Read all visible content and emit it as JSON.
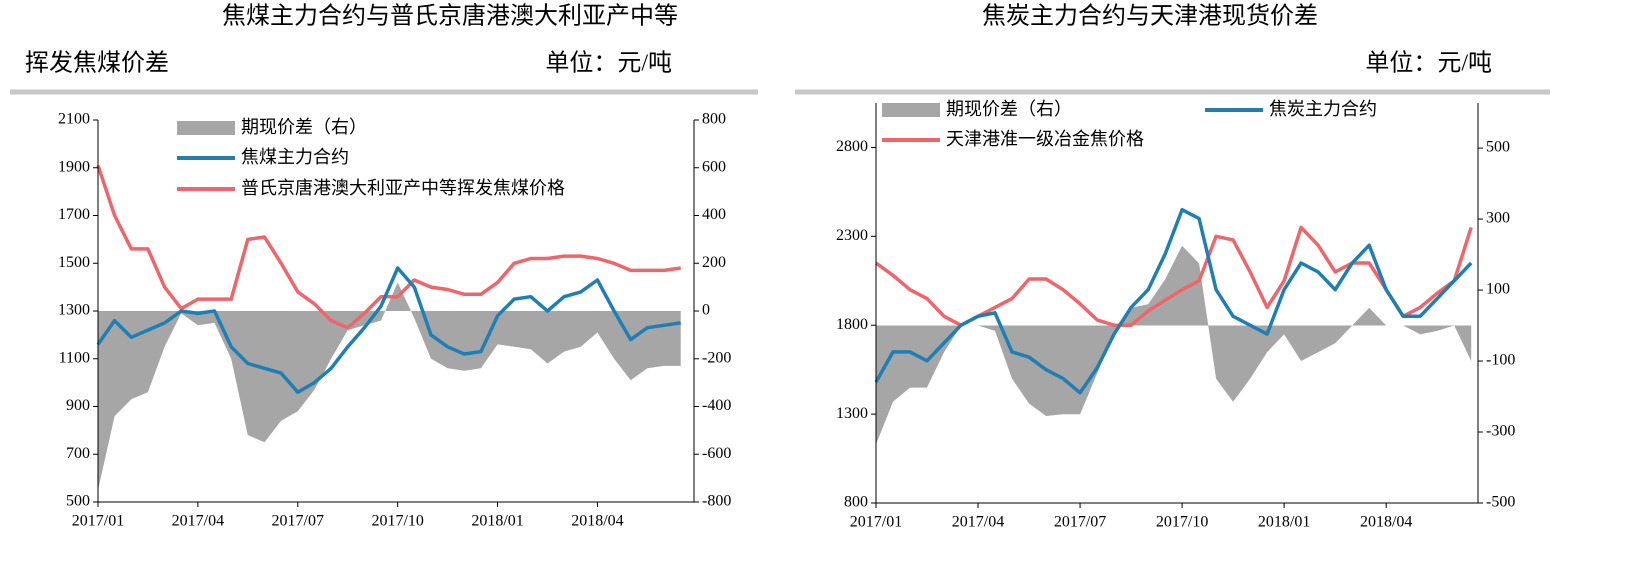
{
  "chart_data": [
    {
      "type": "line",
      "title": [
        "焦煤主力合约与普氏京唐港澳大利亚产中等",
        "挥发焦煤价差"
      ],
      "unit": "单位：元/吨",
      "x": [
        0,
        0.5,
        1,
        1.5,
        2,
        2.5,
        3,
        3.5,
        4,
        4.5,
        5,
        5.5,
        6,
        6.5,
        7,
        7.5,
        8,
        8.5,
        9,
        9.5,
        10,
        10.5,
        11,
        11.5,
        12,
        12.5,
        13,
        13.5,
        14,
        14.5,
        15,
        15.5,
        16,
        16.5,
        17,
        17.5
      ],
      "xlim": [
        0,
        17.9
      ],
      "xticks": [
        {
          "value": 0,
          "label": "2017/01"
        },
        {
          "value": 3,
          "label": "2017/04"
        },
        {
          "value": 6,
          "label": "2017/07"
        },
        {
          "value": 9,
          "label": "2017/10"
        },
        {
          "value": 12,
          "label": "2018/01"
        },
        {
          "value": 15,
          "label": "2018/04"
        }
      ],
      "ylim": [
        500,
        2100
      ],
      "yticks": [
        500,
        700,
        900,
        1100,
        1300,
        1500,
        1700,
        1900,
        2100
      ],
      "y2lim": [
        -800,
        800
      ],
      "y2ticks": [
        -800,
        -600,
        -400,
        -200,
        0,
        200,
        400,
        600,
        800
      ],
      "series": [
        {
          "name": "期现价差（右）",
          "type": "area",
          "axis": "y2",
          "color": "#a6a6a6",
          "values": [
            -750,
            -440,
            -370,
            -340,
            -150,
            -10,
            -60,
            -50,
            -200,
            -520,
            -550,
            -460,
            -420,
            -330,
            -200,
            -80,
            -60,
            -40,
            120,
            -30,
            -200,
            -240,
            -250,
            -240,
            -140,
            -150,
            -160,
            -220,
            -170,
            -150,
            -90,
            -200,
            -290,
            -240,
            -230,
            -230
          ]
        },
        {
          "name": "焦煤主力合约",
          "type": "line",
          "color": "#1f7fb4",
          "values": [
            1160,
            1260,
            1190,
            1220,
            1250,
            1300,
            1290,
            1300,
            1150,
            1080,
            1060,
            1040,
            960,
            1000,
            1060,
            1150,
            1230,
            1320,
            1480,
            1400,
            1200,
            1150,
            1120,
            1130,
            1280,
            1350,
            1360,
            1300,
            1360,
            1380,
            1430,
            1300,
            1180,
            1230,
            1240,
            1250
          ]
        },
        {
          "name": "普氏京唐港澳大利亚产中等挥发焦煤价格",
          "type": "line",
          "color": "#f0646a",
          "values": [
            1910,
            1700,
            1560,
            1560,
            1400,
            1310,
            1350,
            1350,
            1350,
            1600,
            1610,
            1500,
            1380,
            1330,
            1260,
            1230,
            1290,
            1360,
            1360,
            1430,
            1400,
            1390,
            1370,
            1370,
            1420,
            1500,
            1520,
            1520,
            1530,
            1530,
            1520,
            1500,
            1470,
            1470,
            1470,
            1480
          ]
        }
      ]
    },
    {
      "type": "line",
      "title": [
        "焦炭主力合约与天津港现货价差"
      ],
      "unit": "单位：元/吨",
      "x": [
        0,
        0.5,
        1,
        1.5,
        2,
        2.5,
        3,
        3.5,
        4,
        4.5,
        5,
        5.5,
        6,
        6.5,
        7,
        7.5,
        8,
        8.5,
        9,
        9.5,
        10,
        10.5,
        11,
        11.5,
        12,
        12.5,
        13,
        13.5,
        14,
        14.5,
        15,
        15.5,
        16,
        16.5,
        17,
        17.5
      ],
      "xlim": [
        0,
        17.7
      ],
      "xticks": [
        {
          "value": 0,
          "label": "2017/01"
        },
        {
          "value": 3,
          "label": "2017/04"
        },
        {
          "value": 6,
          "label": "2017/07"
        },
        {
          "value": 9,
          "label": "2017/10"
        },
        {
          "value": 12,
          "label": "2018/01"
        },
        {
          "value": 15,
          "label": "2018/04"
        }
      ],
      "ylim": [
        800,
        3050
      ],
      "yticks": [
        800,
        1300,
        1800,
        2300,
        2800
      ],
      "y2lim": [
        -500,
        627
      ],
      "y2ticks": [
        -500,
        -300,
        -100,
        100,
        300,
        500
      ],
      "series": [
        {
          "name": "期现价差（右）",
          "type": "area",
          "axis": "y2",
          "color": "#a6a6a6",
          "values": [
            -335,
            -215,
            -175,
            -175,
            -75,
            0,
            0,
            -15,
            -150,
            -220,
            -255,
            -250,
            -250,
            -135,
            -25,
            50,
            60,
            130,
            225,
            175,
            -150,
            -215,
            -150,
            -75,
            -25,
            -100,
            -75,
            -50,
            0,
            50,
            0,
            0,
            -25,
            -15,
            0,
            -100
          ]
        },
        {
          "name": "焦炭主力合约",
          "type": "line",
          "color": "#1f7fb4",
          "values": [
            1480,
            1650,
            1650,
            1600,
            1700,
            1800,
            1850,
            1870,
            1650,
            1620,
            1550,
            1500,
            1420,
            1560,
            1750,
            1900,
            2000,
            2200,
            2450,
            2400,
            2000,
            1850,
            1800,
            1750,
            2000,
            2150,
            2100,
            2000,
            2150,
            2250,
            2000,
            1850,
            1850,
            1950,
            2050,
            2150
          ]
        },
        {
          "name": "天津港准一级冶金焦价格",
          "type": "line",
          "color": "#f0646a",
          "values": [
            2150,
            2080,
            2000,
            1950,
            1850,
            1800,
            1850,
            1900,
            1950,
            2060,
            2060,
            2000,
            1920,
            1830,
            1800,
            1800,
            1880,
            1940,
            2000,
            2050,
            2300,
            2280,
            2100,
            1900,
            2050,
            2350,
            2250,
            2100,
            2150,
            2150,
            2000,
            1850,
            1900,
            1980,
            2050,
            2350
          ]
        }
      ]
    }
  ]
}
